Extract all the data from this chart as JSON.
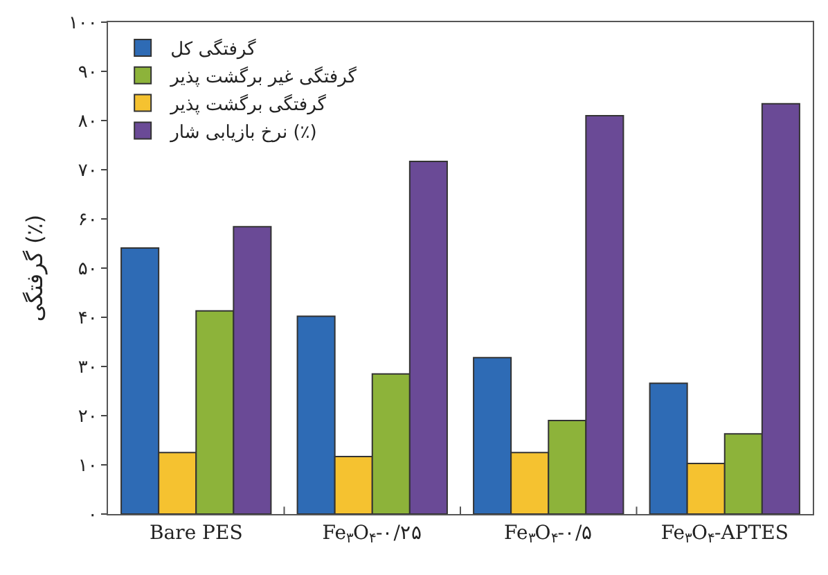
{
  "chart_data": {
    "type": "bar",
    "ylabel": "گرفتگی (٪)",
    "categories": [
      "Bare PES",
      "Fe$_{۳}$O$_{۴}$-۰/۲۵",
      "Fe$_{۳}$O$_{۴}$-۰/۵",
      "Fe$_{۳}$O$_{۴}$-APTES"
    ],
    "series": [
      {
        "name": "گرفتگی کل",
        "color": "#2e6bb5",
        "values": [
          54.1,
          40.2,
          31.8,
          26.6
        ]
      },
      {
        "name": "گرفتگی برگشت پذیر",
        "color": "#f5c230",
        "values": [
          12.5,
          11.7,
          12.5,
          10.3
        ]
      },
      {
        "name": "گرفتگی غیر برگشت پذیر",
        "color": "#8db33a",
        "values": [
          41.3,
          28.5,
          19.0,
          16.3
        ]
      },
      {
        "name": "نرخ بازیابی شار (٪)",
        "color": "#6a4a96",
        "values": [
          58.4,
          71.7,
          81.0,
          83.4
        ]
      }
    ],
    "ylim": [
      0,
      100
    ],
    "yticks": [
      {
        "value": 0,
        "label": "۰"
      },
      {
        "value": 10,
        "label": "۱۰"
      },
      {
        "value": 20,
        "label": "۲۰"
      },
      {
        "value": 30,
        "label": "۳۰"
      },
      {
        "value": 40,
        "label": "۴۰"
      },
      {
        "value": 50,
        "label": "۵۰"
      },
      {
        "value": 60,
        "label": "۶۰"
      },
      {
        "value": 70,
        "label": "۷۰"
      },
      {
        "value": 80,
        "label": "۸۰"
      },
      {
        "value": 90,
        "label": "۹۰"
      },
      {
        "value": 100,
        "label": "۱۰۰"
      }
    ],
    "legend": "top left"
  }
}
